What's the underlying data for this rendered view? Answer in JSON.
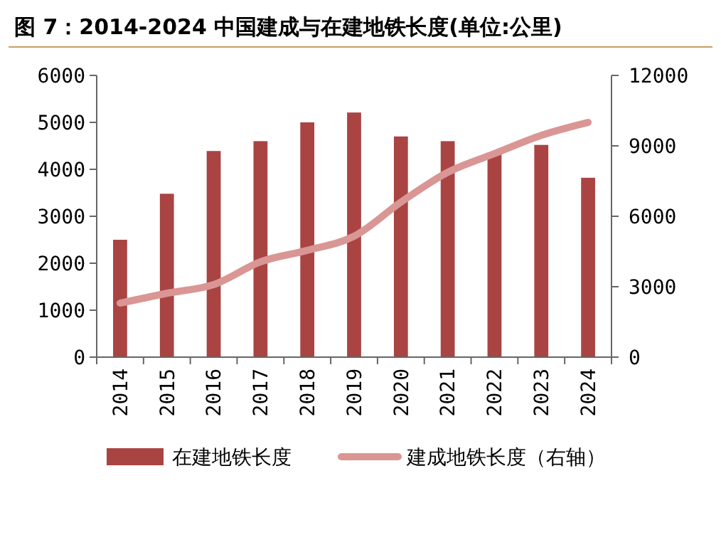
{
  "chart_data": {
    "type": "bar",
    "title": "图 7：2014-2024 中国建成与在建地铁长度(单位:公里)",
    "categories": [
      "2014",
      "2015",
      "2016",
      "2017",
      "2018",
      "2019",
      "2020",
      "2021",
      "2022",
      "2023",
      "2024"
    ],
    "series": [
      {
        "name": "在建地铁长度",
        "color": "#a94442",
        "values": [
          2500,
          3480,
          4390,
          4600,
          5000,
          5210,
          4700,
          4600,
          4360,
          4520,
          3820
        ]
      },
      {
        "name": "建成地铁长度（右轴）",
        "type": "line",
        "axis": "y2",
        "color": "#d99694",
        "values": [
          2300,
          2720,
          3090,
          4060,
          4550,
          5150,
          6600,
          7870,
          8670,
          9450,
          10000
        ]
      }
    ],
    "ylim": [
      0,
      6000
    ],
    "yticks": [
      0,
      1000,
      2000,
      3000,
      4000,
      5000,
      6000
    ],
    "y2lim": [
      0,
      12000
    ],
    "y2ticks": [
      0,
      3000,
      6000,
      9000,
      12000
    ],
    "legend": "bottom",
    "grid": false
  }
}
